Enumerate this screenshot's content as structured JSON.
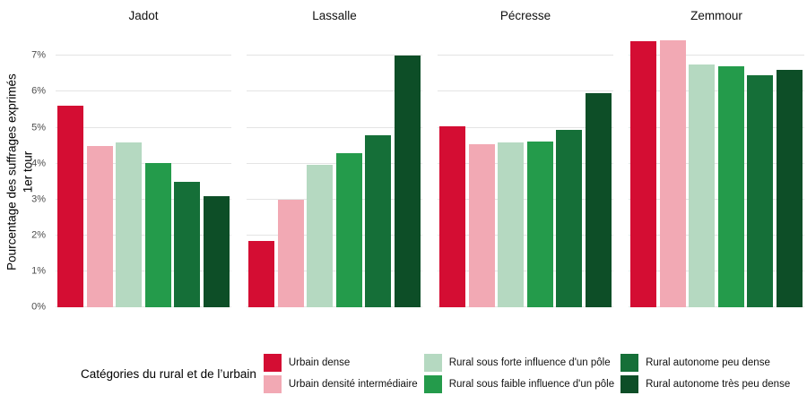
{
  "figure": {
    "y_axis_title_line1": "Pourcentage des suffrages exprimés",
    "y_axis_title_line2": "1er tour",
    "legend_title": "Catégories du rural et de l’urbain"
  },
  "chart_data": {
    "type": "bar",
    "title": "",
    "ylabel": "Pourcentage des suffrages exprimés 1er tour",
    "xlabel": "",
    "facets": [
      "Jadot",
      "Lassalle",
      "Pécresse",
      "Zemmour"
    ],
    "categories": [
      "Urbain dense",
      "Urbain densité intermédiaire",
      "Rural sous forte influence d'un pôle",
      "Rural sous faible influence d'un pôle",
      "Rural autonome peu dense",
      "Rural autonome très peu dense"
    ],
    "colors": [
      "#d40d33",
      "#f2a9b4",
      "#b5d9c1",
      "#249b4b",
      "#156f38",
      "#0d4e27"
    ],
    "series": [
      {
        "facet": "Jadot",
        "values": [
          5.62,
          4.48,
          4.58,
          4.02,
          3.49,
          3.1
        ]
      },
      {
        "facet": "Lassalle",
        "values": [
          1.85,
          3.0,
          3.96,
          4.28,
          4.78,
          7.02
        ]
      },
      {
        "facet": "Pécresse",
        "values": [
          5.04,
          4.54,
          4.59,
          4.61,
          4.94,
          5.97
        ]
      },
      {
        "facet": "Zemmour",
        "values": [
          7.4,
          7.43,
          6.76,
          6.72,
          6.46,
          6.62
        ]
      }
    ],
    "ylim": [
      0,
      7.5
    ],
    "yticks": [
      "0%",
      "1%",
      "2%",
      "3%",
      "4%",
      "5%",
      "6%",
      "7%"
    ],
    "grid": "horizontal",
    "gridline_color": "#e4e4e4",
    "legend_title": "Catégories du rural et de l’urbain",
    "legend_position": "bottom"
  }
}
